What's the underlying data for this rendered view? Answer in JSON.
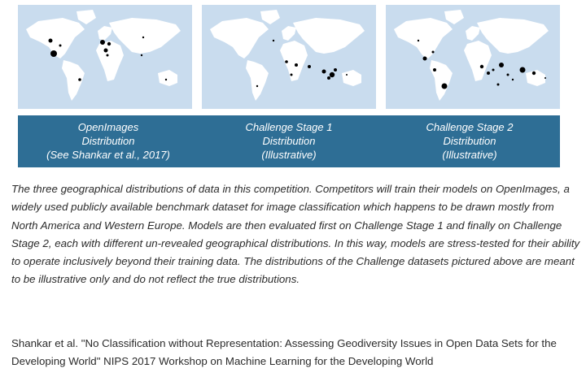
{
  "colors": {
    "map_background": "#c9dcee",
    "land": "#ffffff",
    "banner": "#2e6e95",
    "marker": "#000000"
  },
  "panels": [
    {
      "lines": [
        "OpenImages",
        "Distribution",
        "(See Shankar et al., 2017)"
      ]
    },
    {
      "lines": [
        "Challenge Stage 1",
        "Distribution",
        "(Illustrative)"
      ]
    },
    {
      "lines": [
        "Challenge Stage 2",
        "Distribution",
        "(Illustrative)"
      ]
    }
  ],
  "caption": "The three geographical distributions of data in this competition. Competitors will train their models on OpenImages, a widely used publicly available benchmark dataset for image classification which happens to be drawn mostly from North America and Western Europe. Models are then evaluated first on Challenge Stage 1 and finally on Challenge Stage 2, each with different un-revealed geographical distributions. In this way, models are stress-tested for their ability to operate inclusively beyond their training data. The distributions of the Challenge datasets pictured above are meant to be illustrative only and do not reflect the true distributions.",
  "reference": "Shankar et al. \"No Classification without Representation: Assessing Geodiversity Issues in Open Data Sets for the Developing World\" NIPS 2017 Workshop on Machine Learning for the Developing World"
}
